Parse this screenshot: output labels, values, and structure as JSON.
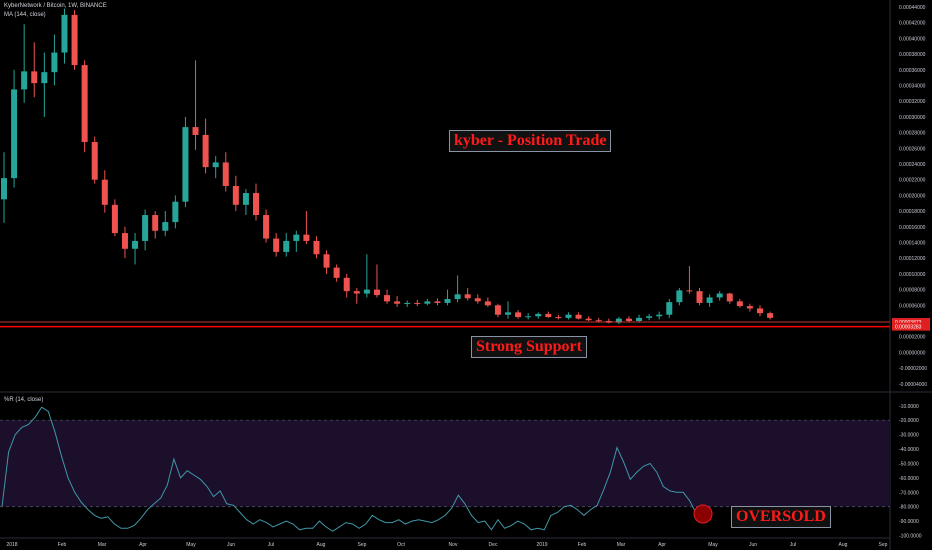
{
  "header": {
    "symbol_line": "KyberNetwork / Bitcoin, 1W, BINANCE",
    "ma_line": "MA (144, close)",
    "wr_line": "%R (14, close)"
  },
  "annotations": {
    "position_trade": "kyber - Position Trade",
    "strong_support": "Strong Support",
    "oversold": "OVERSOLD"
  },
  "price_tags": [
    "0.00003873",
    "0.00003283"
  ],
  "colors": {
    "up": "#26a69a",
    "down": "#ef5350",
    "support": "#ff0000",
    "wr_line": "#3f97a8",
    "wr_band": "#1b0f2c"
  },
  "chart_data": [
    {
      "type": "candlestick",
      "title": "KyberNetwork / Bitcoin, 1W, BINANCE",
      "x_tick_labels": [
        "2018",
        "Feb",
        "Mar",
        "Apr",
        "May",
        "Jun",
        "Jul",
        "Aug",
        "Sep",
        "Oct",
        "Nov",
        "Dec",
        "2019",
        "Feb",
        "Mar",
        "Apr",
        "May",
        "Jun",
        "Jul",
        "Aug",
        "Sep"
      ],
      "y_tick_labels": [
        "0.00044000",
        "0.00042000",
        "0.00040000",
        "0.00038000",
        "0.00036000",
        "0.00034000",
        "0.00032000",
        "0.00030000",
        "0.00028000",
        "0.00026000",
        "0.00024000",
        "0.00022000",
        "0.00020000",
        "0.00018000",
        "0.00016000",
        "0.00014000",
        "0.00012000",
        "0.00010000",
        "0.00008000",
        "0.00006000",
        "0.00002000",
        "0.00000000",
        "-0.00002000",
        "-0.00004000"
      ],
      "ylim": [
        -4e-05,
        0.00044
      ],
      "candles": [
        [
          0.000195,
          0.000255,
          0.000165,
          0.000222
        ],
        [
          0.000222,
          0.00036,
          0.00021,
          0.000335
        ],
        [
          0.000335,
          0.000418,
          0.000318,
          0.000358
        ],
        [
          0.000358,
          0.000395,
          0.000325,
          0.000343
        ],
        [
          0.000343,
          0.000382,
          0.0003,
          0.000357
        ],
        [
          0.000357,
          0.000405,
          0.00034,
          0.000382
        ],
        [
          0.000382,
          0.000438,
          0.000368,
          0.00043
        ],
        [
          0.00043,
          0.000436,
          0.00036,
          0.000366
        ],
        [
          0.000366,
          0.000372,
          0.000255,
          0.000268
        ],
        [
          0.000268,
          0.000275,
          0.000215,
          0.00022
        ],
        [
          0.00022,
          0.000232,
          0.000178,
          0.000188
        ],
        [
          0.000188,
          0.000195,
          0.000148,
          0.000152
        ],
        [
          0.000152,
          0.00016,
          0.00012,
          0.000132
        ],
        [
          0.000132,
          0.000152,
          0.000112,
          0.000142
        ],
        [
          0.000142,
          0.000182,
          0.00013,
          0.000175
        ],
        [
          0.000175,
          0.00018,
          0.000145,
          0.000155
        ],
        [
          0.000155,
          0.00018,
          0.000148,
          0.000166
        ],
        [
          0.000166,
          0.0002,
          0.000158,
          0.000192
        ],
        [
          0.000192,
          0.0003,
          0.000185,
          0.000287
        ],
        [
          0.000287,
          0.000372,
          0.000258,
          0.000277
        ],
        [
          0.000277,
          0.000298,
          0.000228,
          0.000236
        ],
        [
          0.000236,
          0.00025,
          0.000222,
          0.000242
        ],
        [
          0.000242,
          0.000255,
          0.000205,
          0.000212
        ],
        [
          0.000212,
          0.000225,
          0.00018,
          0.000188
        ],
        [
          0.000188,
          0.000208,
          0.000175,
          0.000203
        ],
        [
          0.000203,
          0.000215,
          0.000168,
          0.000175
        ],
        [
          0.000175,
          0.000182,
          0.00014,
          0.000145
        ],
        [
          0.000145,
          0.000152,
          0.000122,
          0.000128
        ],
        [
          0.000128,
          0.000152,
          0.000122,
          0.000142
        ],
        [
          0.000142,
          0.000155,
          0.000128,
          0.00015
        ],
        [
          0.00015,
          0.00018,
          0.000138,
          0.000142
        ],
        [
          0.000142,
          0.000148,
          0.00012,
          0.000125
        ],
        [
          0.000125,
          0.00013,
          0.0001,
          0.000108
        ],
        [
          0.000108,
          0.000112,
          9e-05,
          9.5e-05
        ],
        [
          9.5e-05,
          0.0001,
          7e-05,
          7.8e-05
        ],
        [
          7.8e-05,
          8.2e-05,
          6.2e-05,
          7.5e-05
        ],
        [
          7.5e-05,
          0.000125,
          7e-05,
          8e-05
        ],
        [
          8e-05,
          0.000112,
          7e-05,
          7.3e-05
        ],
        [
          7.3e-05,
          8e-05,
          6.2e-05,
          6.5e-05
        ],
        [
          6.5e-05,
          7.2e-05,
          5.8e-05,
          6.2e-05
        ],
        [
          6.2e-05,
          6.6e-05,
          5.8e-05,
          6.3e-05
        ],
        [
          6.3e-05,
          6.7e-05,
          5.9e-05,
          6.2e-05
        ],
        [
          6.2e-05,
          6.8e-05,
          6e-05,
          6.5e-05
        ],
        [
          6.5e-05,
          6.9e-05,
          6e-05,
          6.3e-05
        ],
        [
          6.3e-05,
          8e-05,
          6e-05,
          6.8e-05
        ],
        [
          6.8e-05,
          9.8e-05,
          6.4e-05,
          7.4e-05
        ],
        [
          7.4e-05,
          8.2e-05,
          6.6e-05,
          6.9e-05
        ],
        [
          6.9e-05,
          7.4e-05,
          6.2e-05,
          6.5e-05
        ],
        [
          6.5e-05,
          7e-05,
          5.8e-05,
          6e-05
        ],
        [
          6e-05,
          6.2e-05,
          4.5e-05,
          4.8e-05
        ],
        [
          4.8e-05,
          6.5e-05,
          4.3e-05,
          5.1e-05
        ],
        [
          5.1e-05,
          5.4e-05,
          4.3e-05,
          4.5e-05
        ],
        [
          4.5e-05,
          5e-05,
          4.2e-05,
          4.6e-05
        ],
        [
          4.6e-05,
          5.1e-05,
          4.3e-05,
          4.9e-05
        ],
        [
          4.9e-05,
          5.2e-05,
          4.4e-05,
          4.5e-05
        ],
        [
          4.5e-05,
          4.8e-05,
          4.2e-05,
          4.4e-05
        ],
        [
          4.4e-05,
          5.1e-05,
          4.2e-05,
          4.8e-05
        ],
        [
          4.8e-05,
          5.1e-05,
          4.2e-05,
          4.3e-05
        ],
        [
          4.3e-05,
          4.6e-05,
          4e-05,
          4.1e-05
        ],
        [
          4.1e-05,
          4.4e-05,
          3.8e-05,
          4e-05
        ],
        [
          4e-05,
          4.3e-05,
          3.7e-05,
          3.8e-05
        ],
        [
          3.8e-05,
          4.5e-05,
          3.6e-05,
          4.3e-05
        ],
        [
          4.3e-05,
          4.6e-05,
          3.8e-05,
          4e-05
        ],
        [
          4e-05,
          4.8e-05,
          3.8e-05,
          4.4e-05
        ],
        [
          4.4e-05,
          4.9e-05,
          4.1e-05,
          4.6e-05
        ],
        [
          4.6e-05,
          5.2e-05,
          4.2e-05,
          4.8e-05
        ],
        [
          4.8e-05,
          6.8e-05,
          4.4e-05,
          6.4e-05
        ],
        [
          6.4e-05,
          8.2e-05,
          6e-05,
          7.9e-05
        ],
        [
          7.9e-05,
          0.00011,
          7.5e-05,
          7.8e-05
        ],
        [
          7.8e-05,
          8.2e-05,
          6e-05,
          6.3e-05
        ],
        [
          6.3e-05,
          7.4e-05,
          5.8e-05,
          7e-05
        ],
        [
          7e-05,
          7.8e-05,
          6.6e-05,
          7.5e-05
        ],
        [
          7.5e-05,
          7.6e-05,
          6.2e-05,
          6.5e-05
        ],
        [
          6.5e-05,
          6.8e-05,
          5.7e-05,
          5.9e-05
        ],
        [
          5.9e-05,
          6.2e-05,
          5.2e-05,
          5.6e-05
        ],
        [
          5.6e-05,
          6e-05,
          4.6e-05,
          5e-05
        ],
        [
          5e-05,
          5.2e-05,
          4.2e-05,
          4.4e-05
        ]
      ],
      "ma_144_close": null,
      "horizontal_levels": [
        3.873e-05,
        3.283e-05
      ]
    },
    {
      "type": "line",
      "title": "%R (14, close)",
      "y_tick_labels": [
        "-10.0000",
        "-20.0000",
        "-30.0000",
        "-40.0000",
        "-50.0000",
        "-60.0000",
        "-70.0000",
        "-80.0000",
        "-90.0000",
        "-100.0000"
      ],
      "ylim": [
        -101,
        -6
      ],
      "band": [
        -20,
        -80
      ],
      "values": [
        -80,
        -42,
        -30,
        -25,
        -23,
        -18,
        -11,
        -14,
        -28,
        -45,
        -60,
        -70,
        -77,
        -82,
        -86,
        -88,
        -87,
        -92,
        -95,
        -95,
        -93,
        -88,
        -82,
        -78,
        -74,
        -65,
        -47,
        -60,
        -55,
        -58,
        -61,
        -66,
        -73,
        -69,
        -78,
        -79,
        -84,
        -89,
        -92,
        -89,
        -91,
        -94,
        -92,
        -90,
        -92,
        -96,
        -95,
        -95,
        -90,
        -94,
        -97,
        -94,
        -91,
        -92,
        -95,
        -92,
        -86,
        -89,
        -91,
        -91,
        -89,
        -92,
        -90,
        -89,
        -90,
        -91,
        -89,
        -86,
        -81,
        -72,
        -78,
        -86,
        -91,
        -90,
        -96,
        -89,
        -95,
        -93,
        -90,
        -92,
        -96,
        -95,
        -96,
        -86,
        -84,
        -80,
        -79,
        -82,
        -86,
        -82,
        -79,
        -68,
        -56,
        -39,
        -49,
        -61,
        -56,
        -52,
        -50,
        -56,
        -66,
        -69,
        -70,
        -70,
        -76,
        -85,
        -91
      ]
    }
  ]
}
